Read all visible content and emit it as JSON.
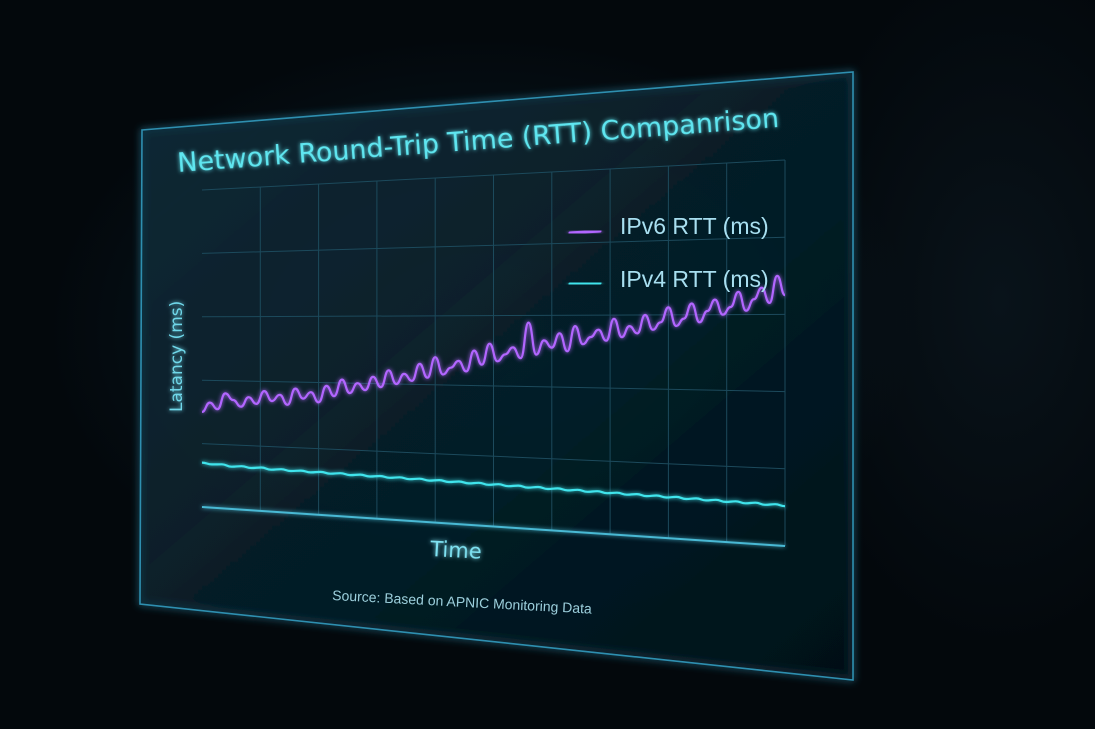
{
  "chart_data": {
    "type": "line",
    "title": "Network Round-Trip Time (RTT) Companrison",
    "xlabel": "Time",
    "ylabel": "Latancy (ms)",
    "source": "Source: Based on APNIC Monitoring Data",
    "grid": true,
    "legend_position": "top-right",
    "ylim": [
      0,
      100
    ],
    "series": [
      {
        "name": "IPv6 RTT (ms)",
        "color": "#b266ff",
        "values": [
          30,
          33,
          31,
          36,
          34,
          32,
          35,
          33,
          37,
          34,
          36,
          33,
          38,
          35,
          37,
          34,
          39,
          36,
          41,
          37,
          40,
          38,
          42,
          39,
          44,
          40,
          43,
          41,
          46,
          42,
          48,
          43,
          45,
          47,
          44,
          50,
          46,
          52,
          47,
          49,
          51,
          48,
          58,
          49,
          53,
          51,
          55,
          50,
          57,
          52,
          54,
          56,
          53,
          59,
          54,
          57,
          55,
          60,
          56,
          58,
          62,
          57,
          59,
          63,
          58,
          61,
          64,
          60,
          62,
          66,
          61,
          64,
          67,
          63,
          70,
          65
        ]
      },
      {
        "name": "IPv4 RTT (ms)",
        "color": "#3fe4ec",
        "values": [
          14,
          13.6,
          13.8,
          13.2,
          13.5,
          13.1,
          13.4,
          12.9,
          13.2,
          12.8,
          13.1,
          12.7,
          13,
          12.6,
          12.9,
          12.5,
          12.8,
          12.4,
          12.7,
          12.3,
          12.6,
          12.2,
          12.5,
          12.1,
          12.4,
          12,
          12.3,
          11.9,
          12.2,
          11.8,
          12.1,
          11.7,
          12,
          11.6,
          11.9,
          11.5,
          11.8,
          11.4,
          11.7,
          11.3,
          11.6,
          11.2,
          11.5,
          11.1,
          11.4,
          11,
          11.3,
          10.9,
          11.2,
          10.8,
          11.1,
          10.7,
          11,
          10.6,
          10.9,
          10.5,
          10.8,
          10.4,
          10.7,
          10.3
        ]
      }
    ]
  },
  "theme": {
    "background": "#03080c",
    "panel_edge": "#2f8fb0",
    "grid_color": "#1c4a5c",
    "axis_color": "#48b9d4",
    "title_color": "#5fe6f0"
  }
}
